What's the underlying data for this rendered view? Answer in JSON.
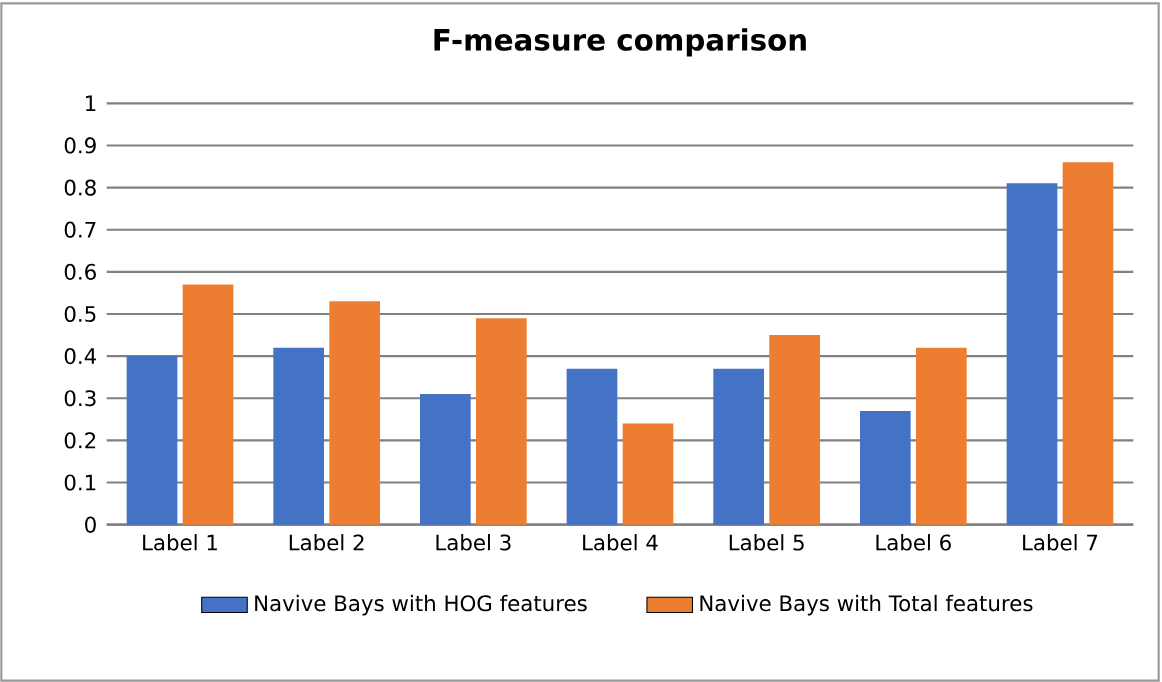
{
  "chart_data": {
    "type": "bar",
    "title": "F-measure comparison",
    "categories": [
      "Label 1",
      "Label 2",
      "Label 3",
      "Label 4",
      "Label 5",
      "Label 6",
      "Label 7"
    ],
    "series": [
      {
        "name": "Navive Bays with HOG features",
        "color": "#4472c4",
        "values": [
          0.4,
          0.42,
          0.31,
          0.37,
          0.37,
          0.27,
          0.81
        ]
      },
      {
        "name": "Navive Bays with Total features",
        "color": "#ed7d31",
        "values": [
          0.57,
          0.53,
          0.49,
          0.24,
          0.45,
          0.42,
          0.86
        ]
      }
    ],
    "ylim": [
      0,
      1
    ],
    "yticks": [
      0,
      0.1,
      0.2,
      0.3,
      0.4,
      0.5,
      0.6,
      0.7,
      0.8,
      0.9,
      1
    ],
    "grid": "y",
    "legend": "bottom"
  }
}
